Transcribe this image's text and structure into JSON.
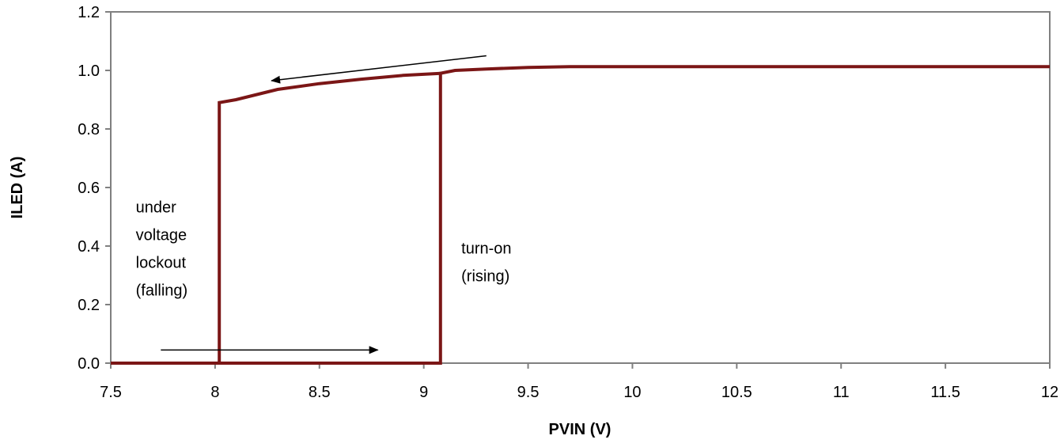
{
  "chart_data": {
    "type": "line",
    "title": "",
    "xlabel": "PVIN (V)",
    "ylabel": "ILED (A)",
    "xlim": [
      7.5,
      12
    ],
    "ylim": [
      0,
      1.2
    ],
    "x_ticks": [
      "7.5",
      "8",
      "8.5",
      "9",
      "9.5",
      "10",
      "10.5",
      "11",
      "11.5",
      "12"
    ],
    "y_ticks": [
      "0.0",
      "0.2",
      "0.4",
      "0.6",
      "0.8",
      "1.0",
      "1.2"
    ],
    "grid": false,
    "legend": "none",
    "series_color": "#7b1616",
    "series": [
      {
        "x": [
          7.5,
          9.08,
          9.08,
          9.15,
          9.3,
          9.5,
          9.7,
          10.0,
          10.5,
          11.0,
          12.0
        ],
        "y": [
          0.0,
          0.0,
          0.99,
          1.0,
          1.005,
          1.01,
          1.013,
          1.013,
          1.013,
          1.013,
          1.013
        ]
      },
      {
        "x": [
          9.08,
          8.9,
          8.7,
          8.5,
          8.3,
          8.1,
          8.02,
          8.02,
          7.5
        ],
        "y": [
          0.99,
          0.983,
          0.97,
          0.955,
          0.935,
          0.9,
          0.89,
          0.0,
          0.0
        ]
      }
    ],
    "annotations": [
      {
        "id": "uvlo",
        "lines": [
          "under",
          "voltage",
          "lockout",
          "(falling)"
        ],
        "x": 7.62,
        "y": 0.515
      },
      {
        "id": "turnon",
        "lines": [
          "turn-on",
          "(rising)"
        ],
        "x": 9.18,
        "y": 0.375
      }
    ],
    "arrows": [
      {
        "id": "arrow-rising",
        "from": [
          7.74,
          0.045
        ],
        "to": [
          8.78,
          0.045
        ]
      },
      {
        "id": "arrow-falling",
        "from": [
          9.3,
          1.05
        ],
        "to": [
          8.27,
          0.965
        ]
      }
    ]
  }
}
